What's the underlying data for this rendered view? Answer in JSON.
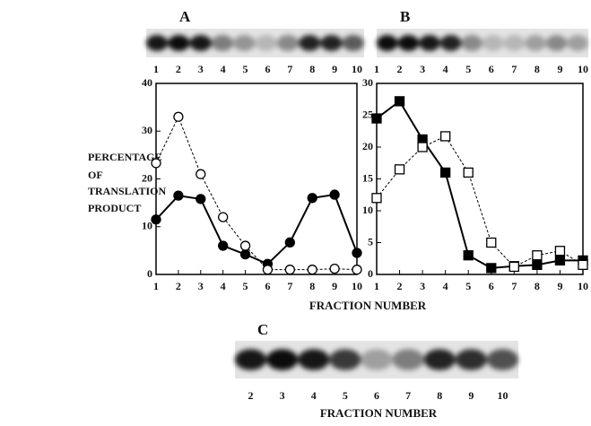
{
  "chart_data": [
    {
      "type": "line",
      "panel_label": "A",
      "gel_lanes": [
        1,
        2,
        3,
        4,
        5,
        6,
        7,
        8,
        9,
        10
      ],
      "x": [
        1,
        2,
        3,
        4,
        5,
        6,
        7,
        8,
        9,
        10
      ],
      "xlim": [
        1,
        10
      ],
      "xticks": [
        1,
        2,
        3,
        4,
        5,
        6,
        7,
        8,
        9,
        10
      ],
      "ylim": [
        0,
        40
      ],
      "yticks": [
        0,
        10,
        20,
        30,
        40
      ],
      "series": [
        {
          "color": "#000000",
          "marker": "circle",
          "filled": true,
          "dashed": false,
          "values": [
            11.5,
            16.5,
            15.8,
            6,
            4.2,
            2.2,
            6.7,
            16,
            16.7,
            4.5
          ]
        },
        {
          "color": "#000000",
          "marker": "circle",
          "filled": false,
          "dashed": true,
          "values": [
            23.3,
            33,
            21,
            12,
            6,
            1,
            1,
            1,
            1.2,
            1
          ]
        }
      ]
    },
    {
      "type": "line",
      "panel_label": "B",
      "gel_lanes": [
        1,
        2,
        3,
        4,
        5,
        6,
        7,
        8,
        9,
        10
      ],
      "x": [
        1,
        2,
        3,
        4,
        5,
        6,
        7,
        8,
        9,
        10
      ],
      "xlim": [
        1,
        10
      ],
      "xticks": [
        1,
        2,
        3,
        4,
        5,
        6,
        7,
        8,
        9,
        10
      ],
      "ylim": [
        0,
        30
      ],
      "yticks": [
        0,
        5,
        10,
        15,
        20,
        25,
        30
      ],
      "series": [
        {
          "color": "#000000",
          "marker": "square",
          "filled": true,
          "dashed": false,
          "values": [
            24.5,
            27.2,
            21.2,
            16,
            3,
            1,
            1.3,
            1.5,
            2.2,
            2.2
          ]
        },
        {
          "color": "#000000",
          "marker": "square",
          "filled": false,
          "dashed": true,
          "values": [
            12,
            16.5,
            20,
            21.7,
            16,
            5,
            1.2,
            3,
            3.7,
            1.5
          ]
        }
      ]
    }
  ],
  "shared": {
    "ylabel_lines": [
      "PERCENTAGE",
      "OF",
      "TRANSLATION",
      "PRODUCT"
    ],
    "xlabel": "FRACTION NUMBER"
  },
  "panel_c": {
    "label": "C",
    "lanes": [
      2,
      3,
      4,
      5,
      6,
      7,
      8,
      9,
      10
    ],
    "xlabel": "FRACTION NUMBER"
  }
}
